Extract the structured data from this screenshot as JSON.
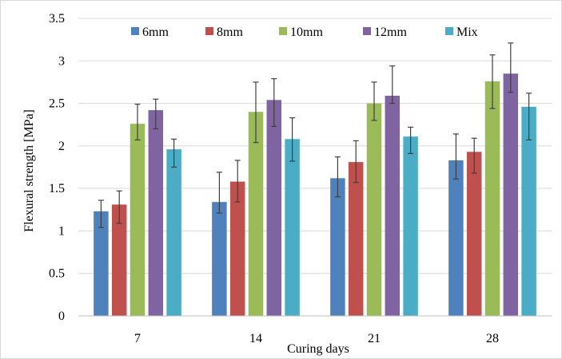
{
  "chart_data": {
    "type": "bar",
    "categories": [
      "7",
      "14",
      "21",
      "28"
    ],
    "series": [
      {
        "name": "6mm",
        "color": "#4f81bd",
        "values": [
          1.23,
          1.34,
          1.62,
          1.83
        ],
        "errors": [
          [
            1.04,
            1.36
          ],
          [
            1.21,
            1.69
          ],
          [
            1.4,
            1.87
          ],
          [
            1.61,
            2.14
          ]
        ]
      },
      {
        "name": "8mm",
        "color": "#c0504d",
        "values": [
          1.31,
          1.58,
          1.81,
          1.93
        ],
        "errors": [
          [
            1.09,
            1.47
          ],
          [
            1.34,
            1.83
          ],
          [
            1.57,
            2.06
          ],
          [
            1.68,
            2.09
          ]
        ]
      },
      {
        "name": "10mm",
        "color": "#9bbb59",
        "values": [
          2.26,
          2.4,
          2.5,
          2.76
        ],
        "errors": [
          [
            2.07,
            2.49
          ],
          [
            2.04,
            2.75
          ],
          [
            2.3,
            2.75
          ],
          [
            2.44,
            3.07
          ]
        ]
      },
      {
        "name": "12mm",
        "color": "#8064a2",
        "values": [
          2.42,
          2.54,
          2.59,
          2.85
        ],
        "errors": [
          [
            2.2,
            2.55
          ],
          [
            2.23,
            2.79
          ],
          [
            2.5,
            2.94
          ],
          [
            2.63,
            3.21
          ]
        ]
      },
      {
        "name": "Mix",
        "color": "#4bacc6",
        "values": [
          1.96,
          2.08,
          2.11,
          2.46
        ],
        "errors": [
          [
            1.75,
            2.08
          ],
          [
            1.82,
            2.33
          ],
          [
            1.91,
            2.22
          ],
          [
            2.07,
            2.62
          ]
        ]
      }
    ],
    "yticks": [
      "0",
      "0.5",
      "1",
      "1.5",
      "2",
      "2.5",
      "3",
      "3.5"
    ],
    "xlabel": "Curing days",
    "ylabel": "Flexural strength [MPa]",
    "ylim": [
      0,
      3.5
    ],
    "grid": true,
    "legend": "top"
  }
}
